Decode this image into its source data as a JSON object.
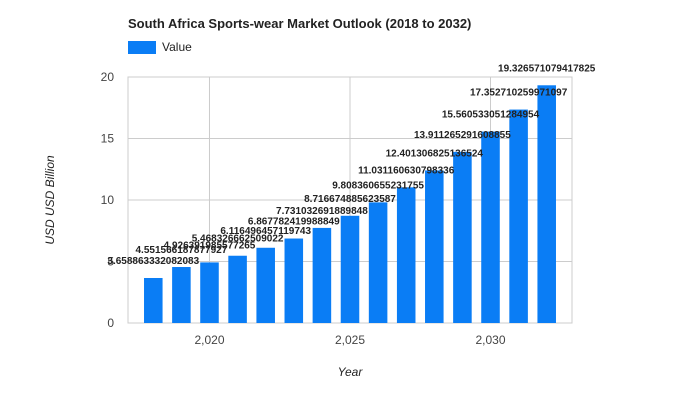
{
  "chart_data": {
    "type": "bar",
    "title": "South Africa Sports-wear Market Outlook (2018 to 2032)",
    "xlabel": "Year",
    "ylabel": "USD USD Billion",
    "legend": {
      "entries": [
        "Value"
      ],
      "placement": "top-left"
    },
    "grid": true,
    "bar_color": "#0a7df5",
    "x_ticks": [
      "2,020",
      "2,025",
      "2,030"
    ],
    "x_tick_values": [
      2020,
      2025,
      2030
    ],
    "y_ticks": [
      "0",
      "5",
      "10",
      "15",
      "20"
    ],
    "y_tick_values": [
      0,
      5,
      10,
      15,
      20
    ],
    "xlim": [
      2017.1,
      2032.9
    ],
    "ylim": [
      0,
      20
    ],
    "series": [
      {
        "name": "Value",
        "x": [
          2018,
          2019,
          2020,
          2021,
          2022,
          2023,
          2024,
          2025,
          2026,
          2027,
          2028,
          2029,
          2030,
          2031,
          2032
        ],
        "values": [
          3.658863332082083,
          4.551566187877927,
          4.926391985577265,
          5.468326662509022,
          6.116496457119743,
          6.867782419988849,
          7.731032691889848,
          8.716674885623586,
          9.808360655231755,
          11.031160630798336,
          12.401306825136524,
          13.911265291608855,
          15.560533051284954,
          17.352710259971097,
          19.326571079417825
        ],
        "labels": [
          "3.658863332082083",
          "4.551566187877927",
          "4.926391985577265",
          "5.468326662509022",
          "6.116496457119743",
          "6.867782419988849",
          "7.731032691889848",
          "8.716674885623587",
          "9.808360655231755",
          "11.031160630798336",
          "12.401306825136524",
          "13.911265291608855",
          "15.560533051284954",
          "17.352710259971097",
          "19.326571079417825"
        ]
      }
    ]
  }
}
